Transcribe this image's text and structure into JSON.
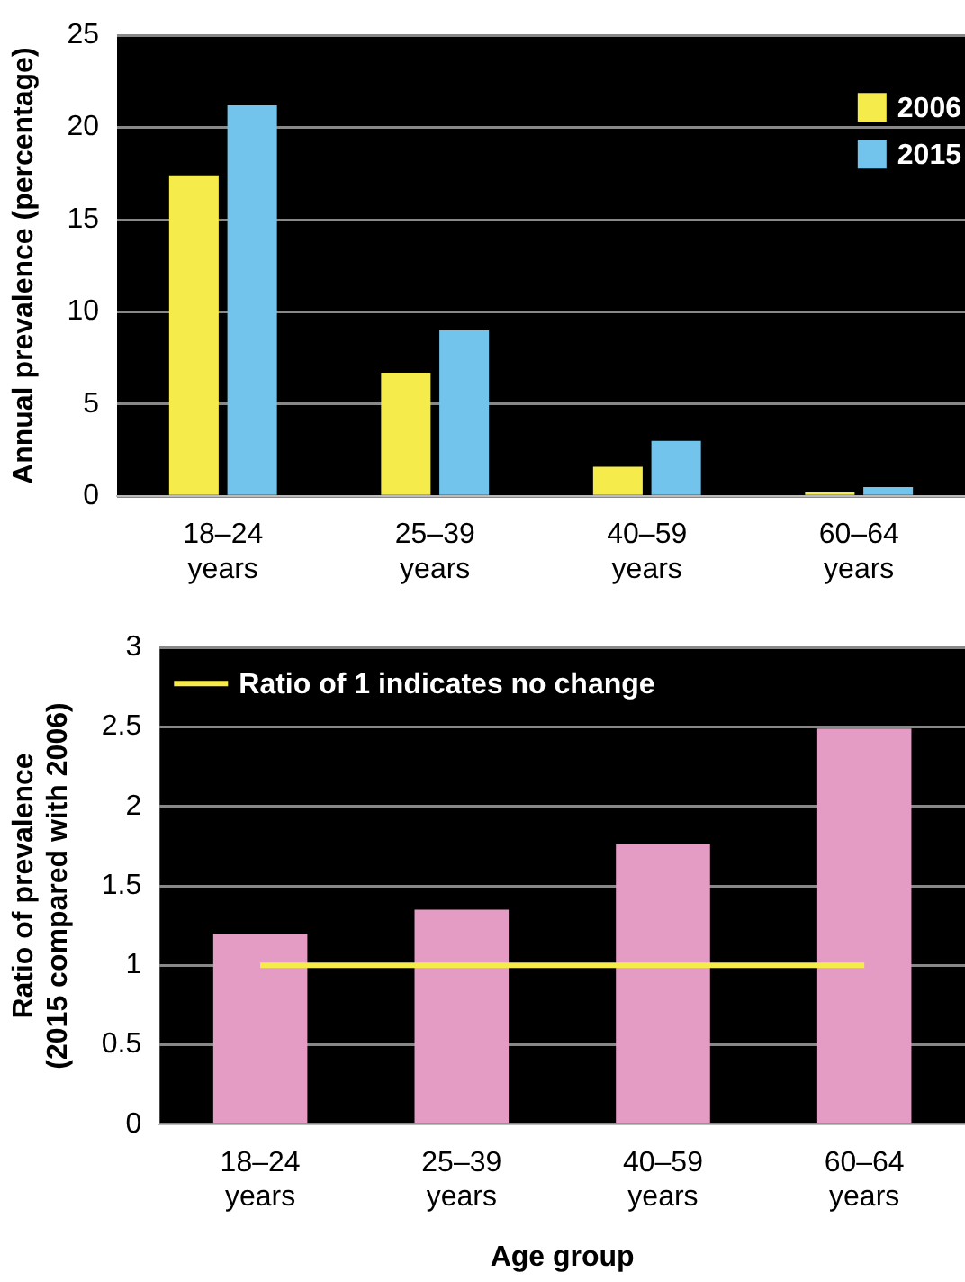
{
  "chart_data": [
    {
      "type": "bar",
      "ylabel": "Annual prevalence (percentage)",
      "categories": [
        "18–24 years",
        "25–39 years",
        "40–59 years",
        "60–64 years"
      ],
      "series": [
        {
          "name": "2006",
          "color": "#f5eb4a",
          "values": [
            17.4,
            6.7,
            1.6,
            0.2
          ]
        },
        {
          "name": "2015",
          "color": "#72c4ec",
          "values": [
            21.2,
            9.0,
            3.0,
            0.5
          ]
        }
      ],
      "ylim": [
        0,
        25
      ],
      "yticks": [
        0,
        5,
        10,
        15,
        20,
        25
      ],
      "grid": "y",
      "legend": "top right"
    },
    {
      "type": "bar",
      "xlabel": "Age group",
      "ylabel": "Ratio of prevalence\n(2015 compared with 2006)",
      "categories": [
        "18–24 years",
        "25–39 years",
        "40–59 years",
        "60–64 years"
      ],
      "series": [
        {
          "color": "#e49cc4",
          "values": [
            1.2,
            1.35,
            1.76,
            2.49
          ]
        },
        {
          "type": "line",
          "name": "Ratio of 1 indicates no change",
          "color": "#f5eb4a",
          "values": [
            1,
            1,
            1,
            1
          ],
          "marker": "none"
        }
      ],
      "ylim": [
        0,
        3
      ],
      "yticks": [
        0,
        0.5,
        1,
        1.5,
        2,
        2.5,
        3
      ],
      "grid": "y",
      "legend": "top left"
    }
  ]
}
